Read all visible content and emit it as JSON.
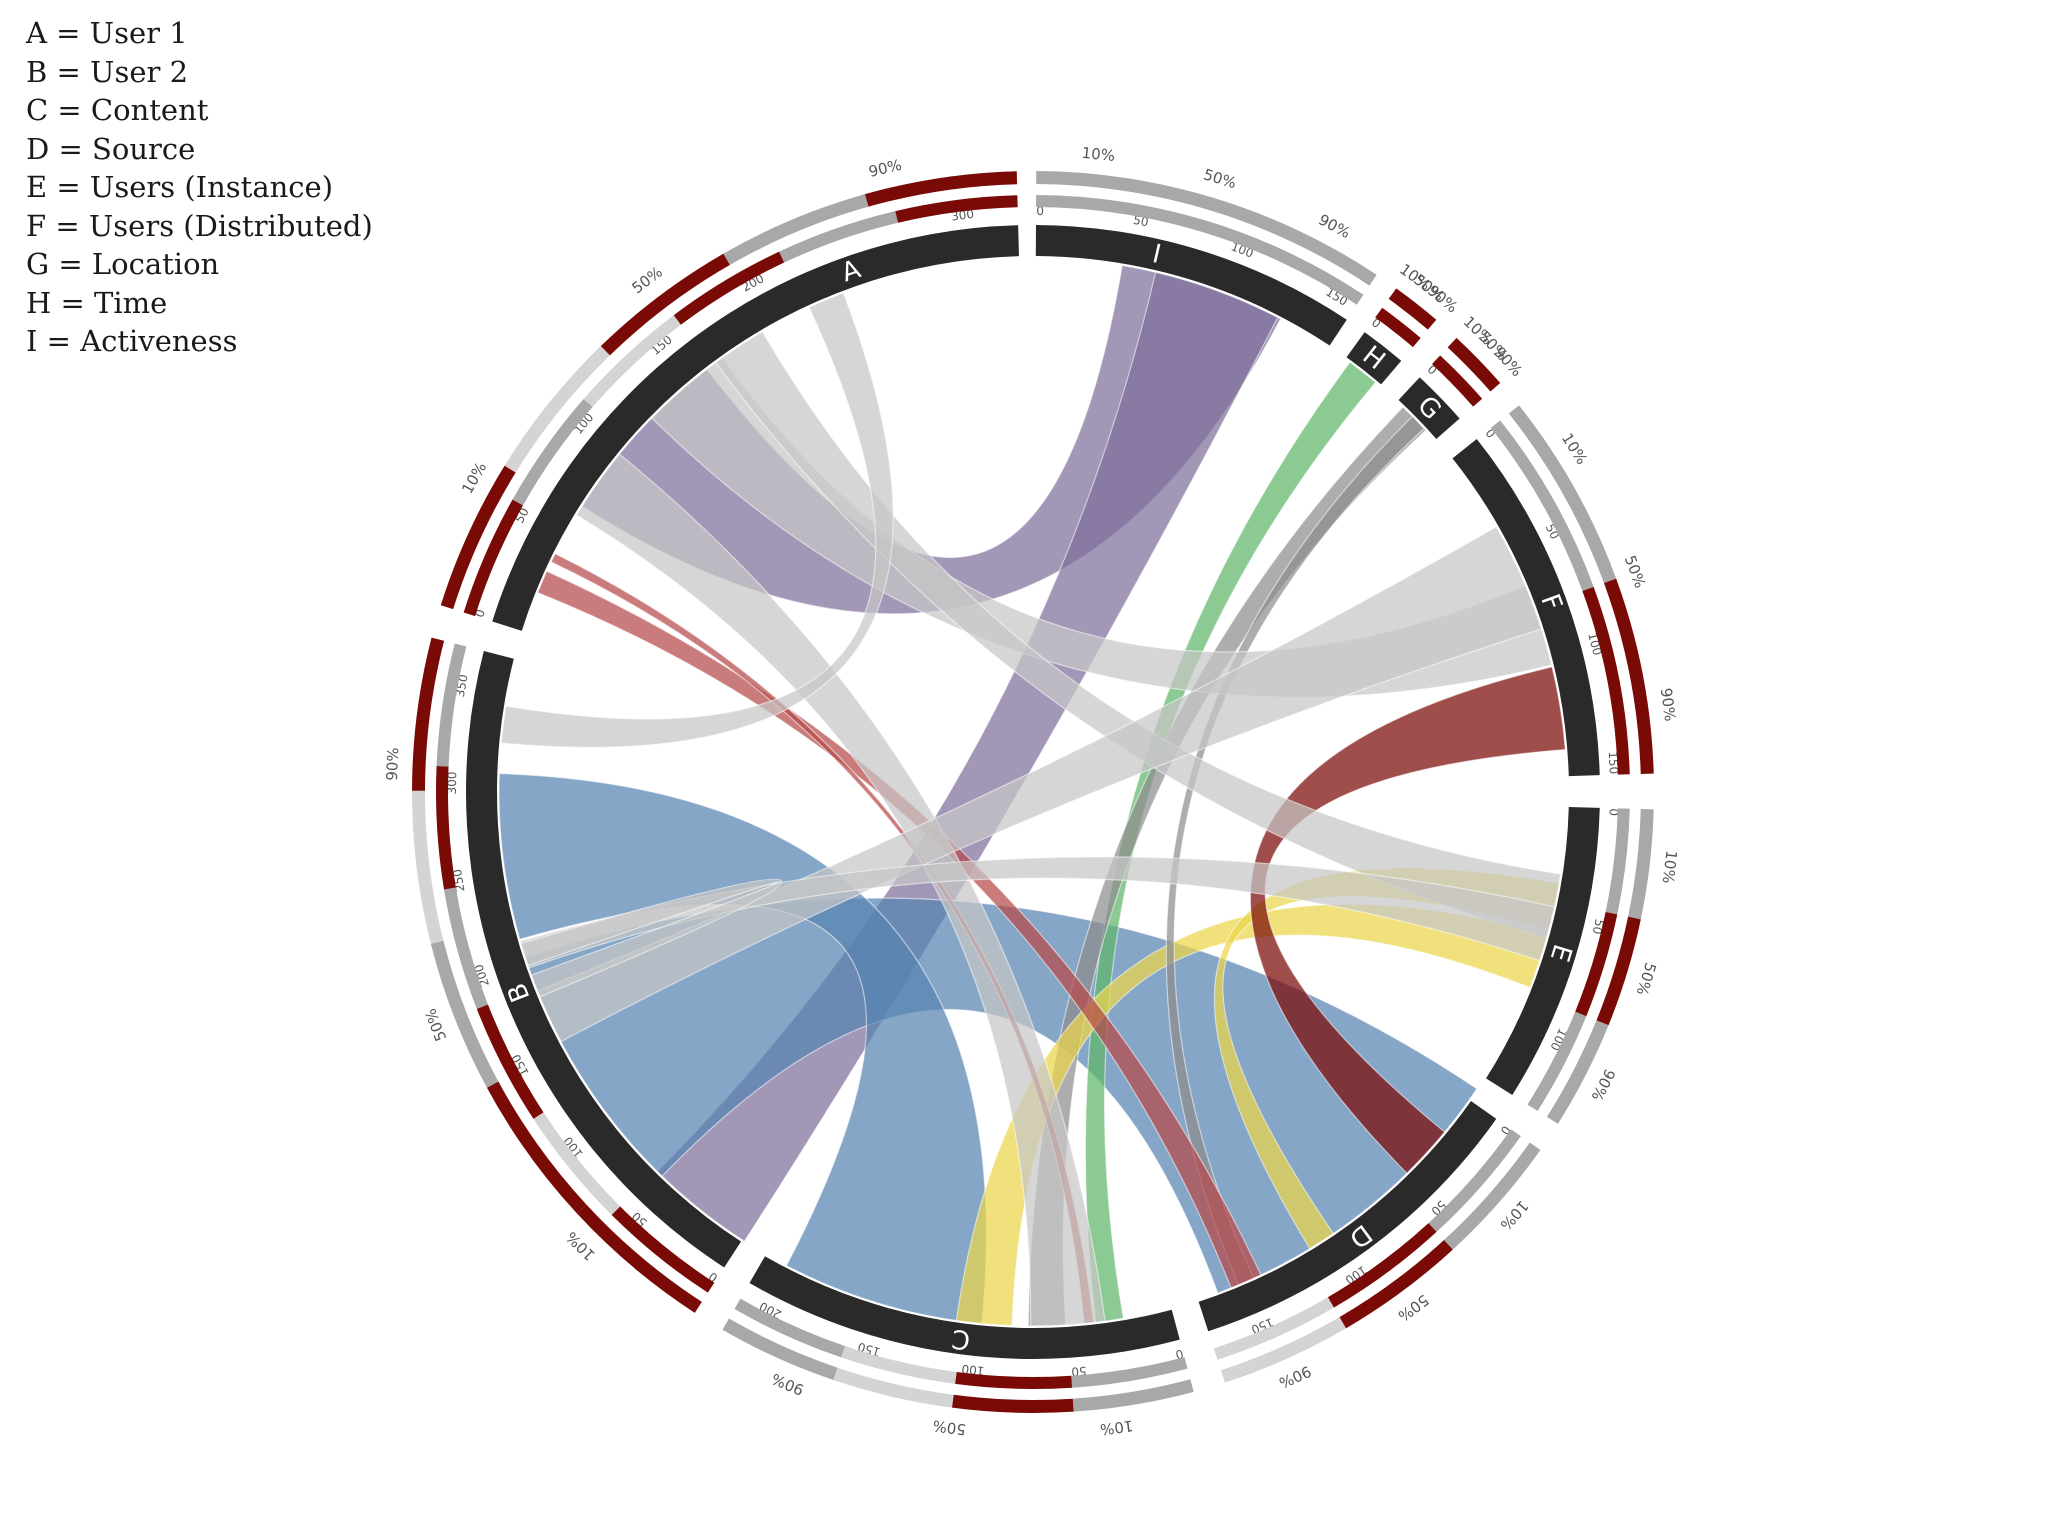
{
  "legend": [
    {
      "key": "A",
      "label": "A = User 1"
    },
    {
      "key": "B",
      "label": "B = User 2"
    },
    {
      "key": "C",
      "label": "C = Content"
    },
    {
      "key": "D",
      "label": "D = Source"
    },
    {
      "key": "E",
      "label": "E = Users (Instance)"
    },
    {
      "key": "F",
      "label": "F = Users (Distributed)"
    },
    {
      "key": "G",
      "label": "G = Location"
    },
    {
      "key": "H",
      "label": "H = Time"
    },
    {
      "key": "I",
      "label": "I = Activeness"
    }
  ],
  "colors": {
    "segment": "#2b2a2a",
    "dark_red": "#7a0a05",
    "mid_gray": "#a8a8a8",
    "light_gray": "#d4d4d4",
    "ribbon_gray": "#c6c6c6",
    "purple": "#7e6f9a",
    "blue": "#5883b2",
    "green": "#5fb56a",
    "yellow": "#ecd54a",
    "red": "#b54a4a",
    "dark_gray": "#8d8d8d"
  },
  "segments": [
    {
      "id": "I",
      "label": "I",
      "total": 160,
      "ticks": [
        "0",
        "50",
        "100",
        "150"
      ]
    },
    {
      "id": "H",
      "label": "H",
      "total": 15,
      "ticks": [
        "0"
      ]
    },
    {
      "id": "G",
      "label": "G",
      "total": 20,
      "ticks": [
        "0"
      ]
    },
    {
      "id": "F",
      "label": "F",
      "total": 155,
      "ticks": [
        "0",
        "50",
        "100",
        "150"
      ]
    },
    {
      "id": "E",
      "label": "E",
      "total": 130,
      "ticks": [
        "0",
        "50",
        "100"
      ]
    },
    {
      "id": "D",
      "label": "D",
      "total": 175,
      "ticks": [
        "0",
        "50",
        "100",
        "150"
      ]
    },
    {
      "id": "C",
      "label": "C",
      "total": 215,
      "ticks": [
        "0",
        "50",
        "100",
        "150",
        "200"
      ]
    },
    {
      "id": "B",
      "label": "B",
      "total": 370,
      "ticks": [
        "0",
        "50",
        "100",
        "150",
        "200",
        "250",
        "300",
        "350"
      ]
    },
    {
      "id": "A",
      "label": "A",
      "total": 325,
      "ticks": [
        "0",
        "50",
        "100",
        "150",
        "200",
        "300"
      ]
    }
  ],
  "ribbons": [
    {
      "from": "A",
      "to": "I",
      "color": "purple"
    },
    {
      "from": "B",
      "to": "I",
      "color": "purple"
    },
    {
      "from": "B",
      "to": "D",
      "color": "blue"
    },
    {
      "from": "B",
      "to": "C",
      "color": "blue"
    },
    {
      "from": "C",
      "to": "H",
      "color": "green"
    },
    {
      "from": "C",
      "to": "G",
      "color": "dark_gray"
    },
    {
      "from": "C",
      "to": "E",
      "color": "yellow"
    },
    {
      "from": "D",
      "to": "E",
      "color": "yellow"
    },
    {
      "from": "D",
      "to": "F",
      "color": "dark_red"
    },
    {
      "from": "D",
      "to": "G",
      "color": "dark_gray"
    },
    {
      "from": "A",
      "to": "D",
      "color": "red"
    },
    {
      "from": "A",
      "to": "C",
      "color": "red"
    },
    {
      "from": "A",
      "to": "F",
      "color": "ribbon_gray"
    },
    {
      "from": "A",
      "to": "E",
      "color": "ribbon_gray"
    },
    {
      "from": "A",
      "to": "C",
      "color": "ribbon_gray"
    },
    {
      "from": "B",
      "to": "F",
      "color": "ribbon_gray"
    },
    {
      "from": "B",
      "to": "E",
      "color": "ribbon_gray"
    },
    {
      "from": "B",
      "to": "B",
      "color": "ribbon_gray"
    },
    {
      "from": "A",
      "to": "B",
      "color": "ribbon_gray"
    }
  ],
  "percentile_rings": [
    {
      "segment": "I",
      "labels": [
        "10%",
        "50%",
        "90%"
      ],
      "inner": [
        "mid_gray"
      ],
      "outer": [
        "mid_gray"
      ]
    },
    {
      "segment": "H",
      "labels": [
        "10%",
        "50%",
        "90%"
      ],
      "inner": [
        "dark_red"
      ],
      "outer": [
        "dark_red"
      ]
    },
    {
      "segment": "G",
      "labels": [
        "10%",
        "50%",
        "90%"
      ],
      "inner": [
        "dark_red"
      ],
      "outer": [
        "dark_red"
      ]
    },
    {
      "segment": "F",
      "labels": [
        "10%",
        "50%",
        "90%"
      ],
      "inner": [
        "mid_gray",
        "dark_red"
      ],
      "outer": [
        "mid_gray",
        "dark_red"
      ]
    },
    {
      "segment": "E",
      "labels": [
        "10%",
        "50%",
        "90%"
      ],
      "inner": [
        "mid_gray",
        "dark_red",
        "mid_gray"
      ],
      "outer": [
        "mid_gray",
        "dark_red",
        "mid_gray"
      ]
    },
    {
      "segment": "D",
      "labels": [
        "10%",
        "50%",
        "90%"
      ],
      "inner": [
        "mid_gray",
        "dark_red",
        "light_gray"
      ],
      "outer": [
        "mid_gray",
        "dark_red",
        "light_gray"
      ]
    },
    {
      "segment": "C",
      "labels": [
        "10%",
        "50%",
        "90%"
      ],
      "inner": [
        "mid_gray",
        "dark_red",
        "light_gray",
        "mid_gray"
      ],
      "outer": [
        "mid_gray",
        "dark_red",
        "light_gray",
        "mid_gray"
      ]
    },
    {
      "segment": "B",
      "labels": [
        "10%",
        "50%",
        "90%"
      ],
      "inner": [
        "dark_red",
        "light_gray",
        "dark_red",
        "mid_gray",
        "dark_red",
        "mid_gray"
      ],
      "outer": [
        "dark_red",
        "dark_red",
        "mid_gray",
        "light_gray",
        "dark_red"
      ]
    },
    {
      "segment": "A",
      "labels": [
        "10%",
        "50%",
        "90%"
      ],
      "inner": [
        "dark_red",
        "mid_gray",
        "light_gray",
        "dark_red",
        "mid_gray",
        "dark_red"
      ],
      "outer": [
        "dark_red",
        "light_gray",
        "dark_red",
        "mid_gray",
        "dark_red"
      ]
    }
  ]
}
